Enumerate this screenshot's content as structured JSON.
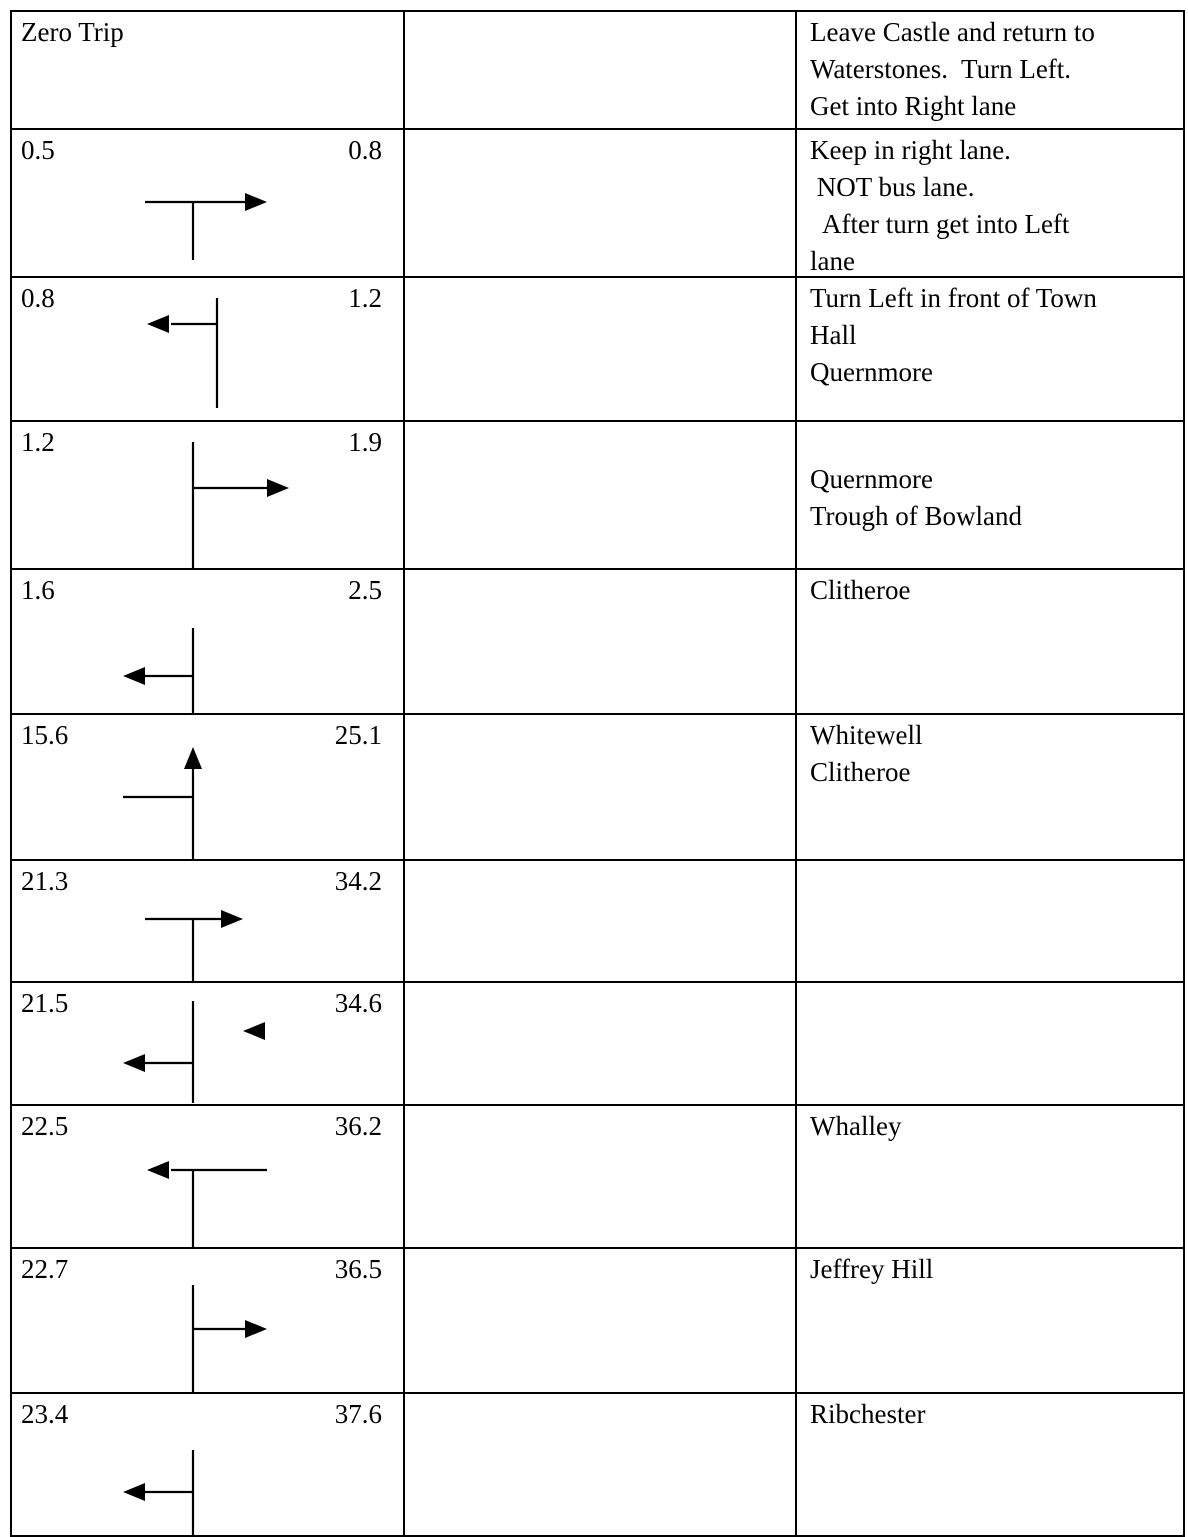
{
  "rows": [
    {
      "miles": "Zero Trip",
      "km": "",
      "direction": "none",
      "instructions": [
        "Leave Castle and return to",
        "Waterstones.  Turn Left.",
        "Get into Right lane"
      ]
    },
    {
      "miles": "0.5",
      "km": "0.8",
      "direction": "right-turn-T-junction",
      "instructions": [
        "Keep in right lane.",
        " NOT bus lane.",
        "  After turn get into Left",
        "lane"
      ]
    },
    {
      "miles": "0.8",
      "km": "1.2",
      "direction": "left-turn-side-road",
      "instructions": [
        "Turn Left in front of Town",
        "Hall",
        "Quernmore"
      ]
    },
    {
      "miles": "1.2",
      "km": "1.9",
      "direction": "right-turn-side-road",
      "instructions": [
        "",
        "Quernmore",
        "Trough of Bowland"
      ]
    },
    {
      "miles": "1.6",
      "km": "2.5",
      "direction": "left-turn-T-junction",
      "instructions": [
        "Clitheroe"
      ]
    },
    {
      "miles": "15.6",
      "km": "25.1",
      "direction": "straight-on-past-left-road",
      "instructions": [
        "Whitewell",
        "Clitheroe"
      ]
    },
    {
      "miles": "21.3",
      "km": "34.2",
      "direction": "right-turn-T-junction",
      "instructions": []
    },
    {
      "miles": "21.5",
      "km": "34.6",
      "direction": "left-turn-with-marker",
      "instructions": []
    },
    {
      "miles": "22.5",
      "km": "36.2",
      "direction": "left-turn-T-junction",
      "instructions": [
        "Whalley"
      ]
    },
    {
      "miles": "22.7",
      "km": "36.5",
      "direction": "right-turn-side-road",
      "instructions": [
        "Jeffrey Hill"
      ]
    },
    {
      "miles": "23.4",
      "km": "37.6",
      "direction": "left-turn-T-junction",
      "instructions": [
        "Ribchester"
      ]
    }
  ]
}
